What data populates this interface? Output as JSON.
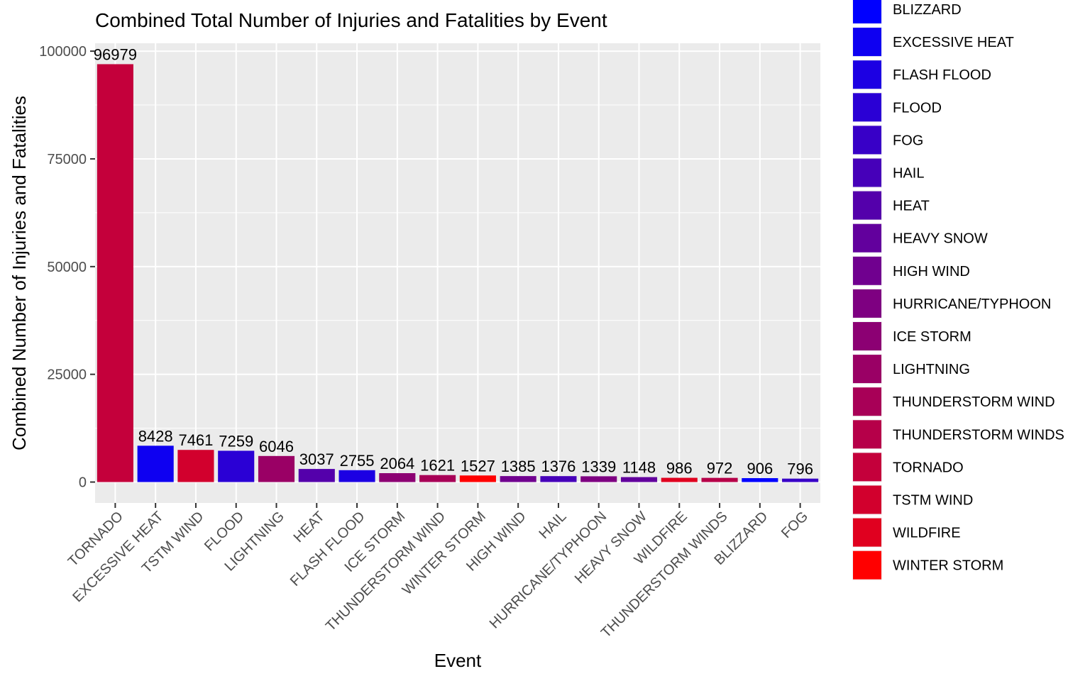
{
  "chart_data": {
    "type": "bar",
    "title": "Combined Total Number of Injuries and Fatalities by Event",
    "xlabel": "Event",
    "ylabel": "Combined Number of Injuries and Fatalities",
    "ylim": [
      -4850,
      101830
    ],
    "yticks": [
      0,
      25000,
      50000,
      75000,
      100000
    ],
    "grid": true,
    "legend_position": "right",
    "categories": [
      "TORNADO",
      "EXCESSIVE HEAT",
      "TSTM WIND",
      "FLOOD",
      "LIGHTNING",
      "HEAT",
      "FLASH FLOOD",
      "ICE STORM",
      "THUNDERSTORM WIND",
      "WINTER STORM",
      "HIGH WIND",
      "HAIL",
      "HURRICANE/TYPHOON",
      "HEAVY SNOW",
      "WILDFIRE",
      "THUNDERSTORM WINDS",
      "BLIZZARD",
      "FOG"
    ],
    "values": [
      96979,
      8428,
      7461,
      7259,
      6046,
      3037,
      2755,
      2064,
      1621,
      1527,
      1385,
      1376,
      1339,
      1148,
      986,
      972,
      906,
      796
    ],
    "legend": [
      {
        "name": "BLIZZARD",
        "color": "#0000FF"
      },
      {
        "name": "EXCESSIVE HEAT",
        "color": "#0E00F1"
      },
      {
        "name": "FLASH FLOOD",
        "color": "#1C00E3"
      },
      {
        "name": "FLOOD",
        "color": "#2A00D5"
      },
      {
        "name": "FOG",
        "color": "#3800C7"
      },
      {
        "name": "HAIL",
        "color": "#4600B9"
      },
      {
        "name": "HEAT",
        "color": "#5400AB"
      },
      {
        "name": "HEAVY SNOW",
        "color": "#62009D"
      },
      {
        "name": "HIGH WIND",
        "color": "#70008F"
      },
      {
        "name": "HURRICANE/TYPHOON",
        "color": "#7E0081"
      },
      {
        "name": "ICE STORM",
        "color": "#8C0073"
      },
      {
        "name": "LIGHTNING",
        "color": "#9A0065"
      },
      {
        "name": "THUNDERSTORM WIND",
        "color": "#A80057"
      },
      {
        "name": "THUNDERSTORM WINDS",
        "color": "#B60049"
      },
      {
        "name": "TORNADO",
        "color": "#C4003B"
      },
      {
        "name": "TSTM WIND",
        "color": "#D2002D"
      },
      {
        "name": "WILDFIRE",
        "color": "#E0001F"
      },
      {
        "name": "WINTER STORM",
        "color": "#FF0000"
      }
    ]
  }
}
